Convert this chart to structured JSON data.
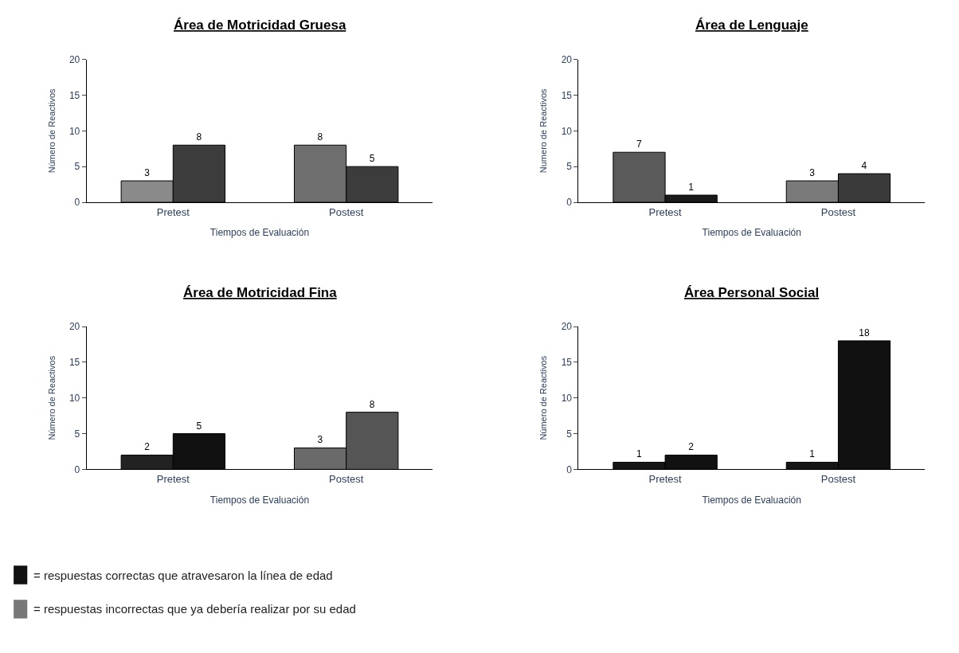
{
  "chart_data": [
    {
      "type": "bar",
      "title": "Área de Motricidad Gruesa",
      "xlabel": "Tiempos de Evaluación",
      "ylabel": "Número de Reactivos",
      "categories": [
        "Pretest",
        "Postest"
      ],
      "ylim": [
        0,
        20
      ],
      "yticks": [
        0,
        5,
        10,
        15,
        20
      ],
      "data_labels": true,
      "series": [
        {
          "colors": [
            "#8a8a8a",
            "#6e6e6e"
          ],
          "values": [
            3,
            8
          ]
        },
        {
          "colors": [
            "#3c3c3c",
            "#3c3c3c"
          ],
          "values": [
            8,
            5
          ]
        }
      ]
    },
    {
      "type": "bar",
      "title": "Área de Lenguaje",
      "xlabel": "Tiempos de Evaluación",
      "ylabel": "Numero de Reactivos",
      "categories": [
        "Pretest",
        "Postest"
      ],
      "ylim": [
        0,
        20
      ],
      "yticks": [
        0,
        5,
        10,
        15,
        20
      ],
      "data_labels": true,
      "series": [
        {
          "colors": [
            "#5a5a5a",
            "#7a7a7a"
          ],
          "values": [
            7,
            3
          ]
        },
        {
          "colors": [
            "#1a1a1a",
            "#3a3a3a"
          ],
          "values": [
            1,
            4
          ]
        }
      ]
    },
    {
      "type": "bar",
      "title": "Área de Motricidad Fina",
      "xlabel": "Tiempos de Evaluación",
      "ylabel": "Número de Reactivos",
      "categories": [
        "Pretest",
        "Postest"
      ],
      "ylim": [
        0,
        20
      ],
      "yticks": [
        0,
        5,
        10,
        15,
        20
      ],
      "data_labels": true,
      "series": [
        {
          "colors": [
            "#222222",
            "#6a6a6a"
          ],
          "values": [
            2,
            3
          ]
        },
        {
          "colors": [
            "#111111",
            "#555555"
          ],
          "values": [
            5,
            8
          ]
        }
      ]
    },
    {
      "type": "bar",
      "title": "Área Personal Social",
      "xlabel": "Tiempos de Evaluación",
      "ylabel": "Número de Reactivos",
      "categories": [
        "Pretest",
        "Postest"
      ],
      "ylim": [
        0,
        20
      ],
      "yticks": [
        0,
        5,
        10,
        15,
        20
      ],
      "data_labels": true,
      "series": [
        {
          "colors": [
            "#151515",
            "#151515"
          ],
          "values": [
            1,
            1
          ]
        },
        {
          "colors": [
            "#111111",
            "#111111"
          ],
          "values": [
            2,
            18
          ]
        }
      ]
    },
    {
      "type": "other",
      "colors": [
        "#111111",
        "#777777"
      ],
      "annotations": [
        "= respuestas correctas que atravesaron la línea de edad",
        "= respuestas incorrectas que ya debería realizar por su edad"
      ]
    }
  ]
}
